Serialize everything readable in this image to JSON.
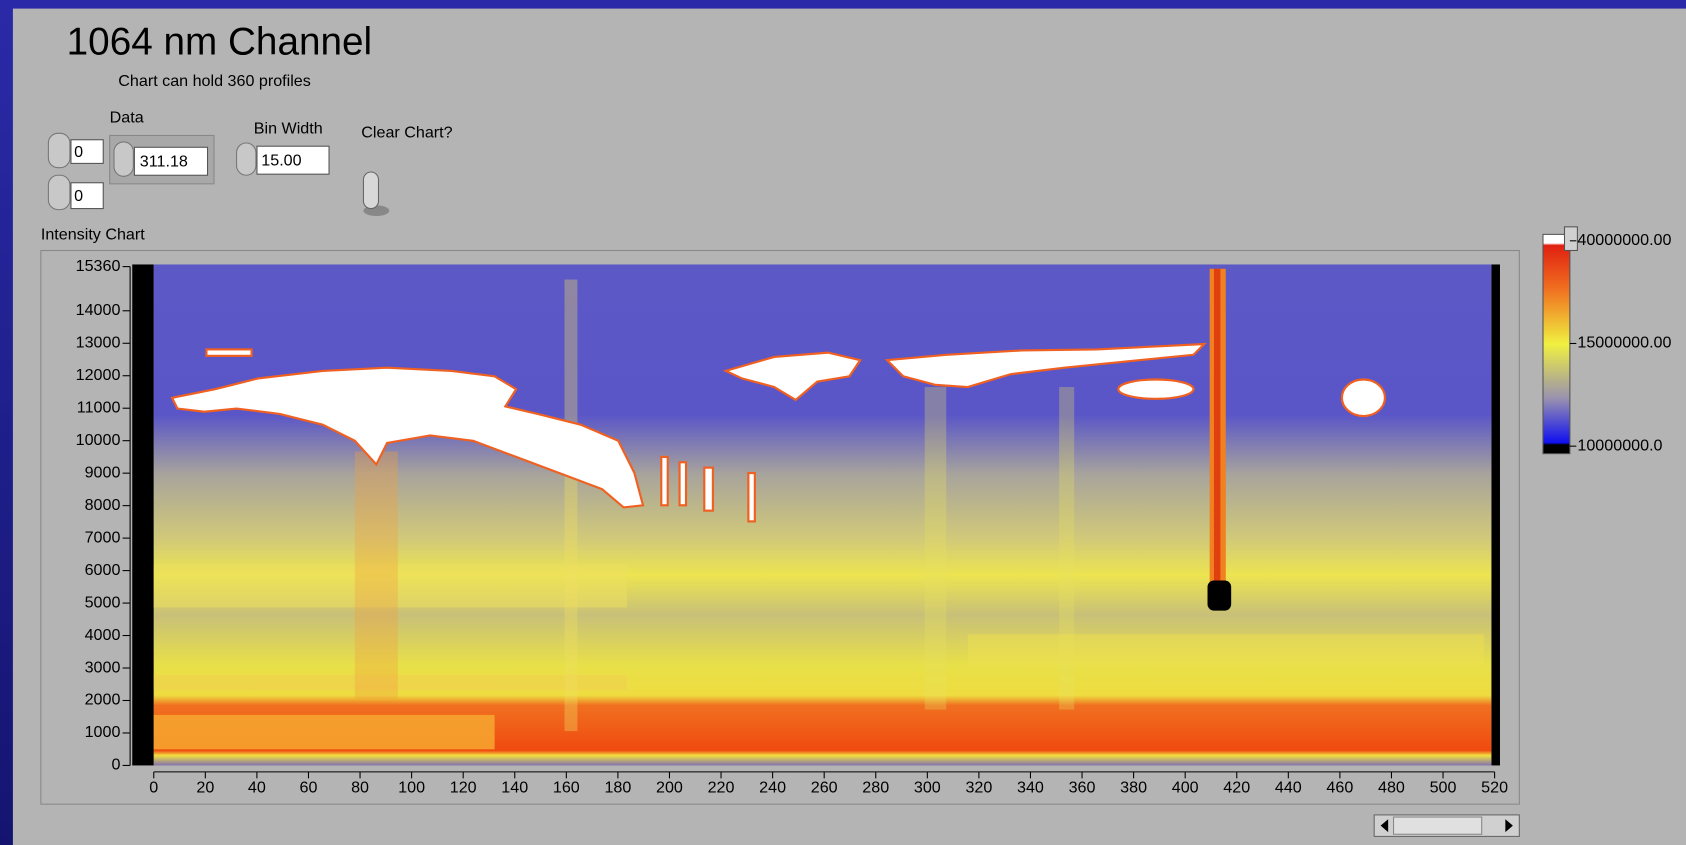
{
  "panel": {
    "title": "1064 nm Channel",
    "subtitle": "Chart can hold 360 profiles",
    "data_label": "Data",
    "data_index_1": "0",
    "data_index_2": "0",
    "data_value": "311.18",
    "bin_width_label": "Bin Width",
    "bin_width_value": "15.00",
    "clear_chart_label": "Clear Chart?"
  },
  "chart_data": {
    "type": "heatmap",
    "title": "Intensity Chart",
    "xlim": [
      0,
      520
    ],
    "xticks": [
      0,
      20,
      40,
      60,
      80,
      100,
      120,
      140,
      160,
      180,
      200,
      220,
      240,
      260,
      280,
      300,
      320,
      340,
      360,
      380,
      400,
      420,
      440,
      460,
      480,
      500,
      520
    ],
    "ylim": [
      0,
      15360
    ],
    "yticks": [
      0,
      1000,
      2000,
      3000,
      4000,
      5000,
      6000,
      7000,
      8000,
      9000,
      10000,
      11000,
      12000,
      13000,
      14000,
      15360
    ],
    "colorbar_ticks": [
      {
        "value": 40000000,
        "label": "40000000.00"
      },
      {
        "value": 15000000,
        "label": "15000000.00"
      },
      {
        "value": 10000000,
        "label": "10000000.0"
      }
    ]
  }
}
